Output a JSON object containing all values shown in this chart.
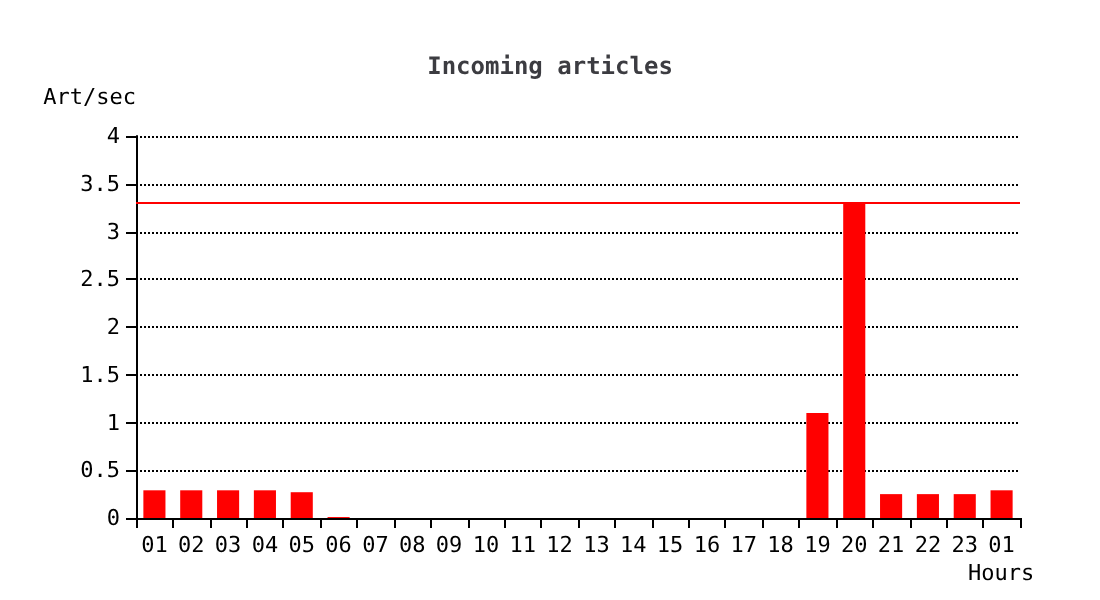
{
  "chart_data": {
    "type": "bar",
    "title": "Incoming articles",
    "ylabel": "Art/sec",
    "xlabel": "Hours",
    "categories": [
      "01",
      "02",
      "03",
      "04",
      "05",
      "06",
      "07",
      "08",
      "09",
      "10",
      "11",
      "12",
      "13",
      "14",
      "15",
      "16",
      "17",
      "18",
      "19",
      "20",
      "21",
      "22",
      "23",
      "01"
    ],
    "values": [
      0.29,
      0.29,
      0.29,
      0.29,
      0.27,
      0.01,
      0,
      0,
      0,
      0,
      0,
      0,
      0,
      0,
      0,
      0,
      0,
      0,
      1.1,
      3.3,
      0.25,
      0.25,
      0.25,
      0.29
    ],
    "color": "#ff0000",
    "ylim": [
      0,
      4
    ],
    "yticks": [
      0,
      0.5,
      1,
      1.5,
      2,
      2.5,
      3,
      3.5,
      4
    ],
    "grid": "y",
    "ref_lines": [
      {
        "axis": "y",
        "value": 3.3,
        "color": "#ff0000",
        "line_style": "solid"
      }
    ]
  }
}
